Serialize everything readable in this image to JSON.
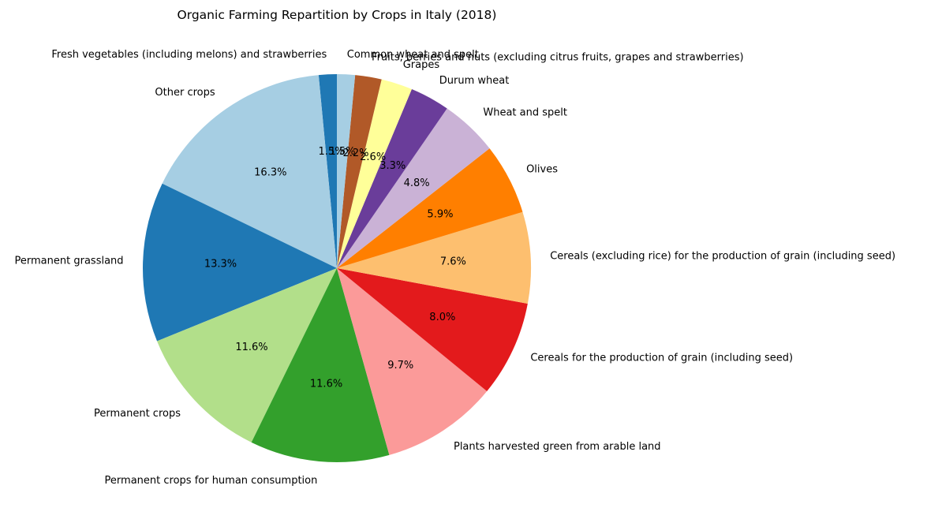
{
  "chart_data": {
    "type": "pie",
    "title": "Organic Farming Repartition by Crops in Italy (2018)",
    "start_angle_deg": 90,
    "direction": "counterclockwise",
    "slices": [
      {
        "label": "Fresh vegetables (including melons) and strawberries",
        "value": 1.5,
        "pct_label": "1.5%",
        "color": "#1f78b4"
      },
      {
        "label": "Other crops",
        "value": 16.3,
        "pct_label": "16.3%",
        "color": "#a6cee3"
      },
      {
        "label": "Permanent grassland",
        "value": 13.3,
        "pct_label": "13.3%",
        "color": "#1f78b4"
      },
      {
        "label": "Permanent crops",
        "value": 11.6,
        "pct_label": "11.6%",
        "color": "#b2df8a"
      },
      {
        "label": "Permanent crops for human consumption",
        "value": 11.6,
        "pct_label": "11.6%",
        "color": "#33a02c"
      },
      {
        "label": "Plants harvested green from arable land",
        "value": 9.7,
        "pct_label": "9.7%",
        "color": "#fb9a99"
      },
      {
        "label": "Cereals for the production of grain (including seed)",
        "value": 8.0,
        "pct_label": "8.0%",
        "color": "#e31a1c"
      },
      {
        "label": "Cereals (excluding rice) for the production of grain (including seed)",
        "value": 7.6,
        "pct_label": "7.6%",
        "color": "#fdbf6f"
      },
      {
        "label": "Olives",
        "value": 5.9,
        "pct_label": "5.9%",
        "color": "#ff7f00"
      },
      {
        "label": "Wheat and spelt",
        "value": 4.8,
        "pct_label": "4.8%",
        "color": "#cab2d6"
      },
      {
        "label": "Durum wheat",
        "value": 3.3,
        "pct_label": "3.3%",
        "color": "#6a3d9a"
      },
      {
        "label": "Grapes",
        "value": 2.6,
        "pct_label": "2.6%",
        "color": "#ffff99"
      },
      {
        "label": "Fruits, berries and nuts (excluding citrus fruits, grapes and strawberries)",
        "value": 2.2,
        "pct_label": "2.2%",
        "color": "#b15928"
      },
      {
        "label": "Common wheat and spelt",
        "value": 1.5,
        "pct_label": "1.5%",
        "color": "#a6cee3"
      }
    ]
  }
}
